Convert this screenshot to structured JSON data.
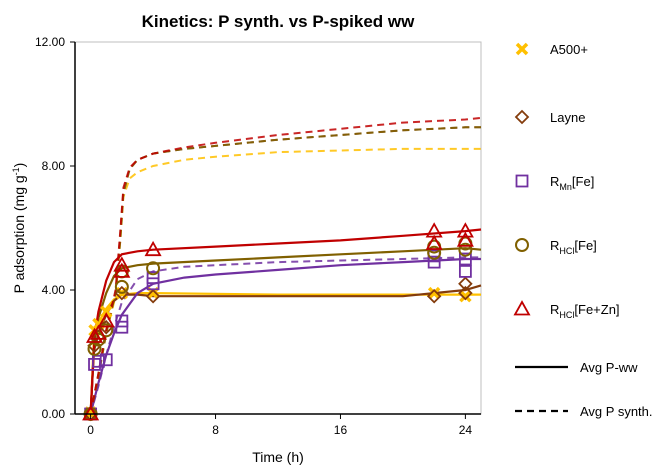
{
  "chart_data": {
    "type": "scatter",
    "title": "Kinetics: P synth. vs P-spiked ww",
    "xlabel": "Time (h)",
    "ylabel_main": "P adsorption (mg g",
    "ylabel_sup": "-1",
    "ylabel_close": ")",
    "xlim": [
      -1,
      25
    ],
    "ylim": [
      0,
      12
    ],
    "x_ticks": [
      "0",
      "8",
      "16",
      "24"
    ],
    "y_ticks": [
      "0.00",
      "4.00",
      "8.00",
      "12.00"
    ],
    "x_tick_values": [
      0,
      8,
      16,
      24
    ],
    "y_tick_values": [
      0,
      4,
      8,
      12
    ],
    "grid": false,
    "legend_position": "right",
    "series": [
      {
        "name": "A500+",
        "label_main": "A500+",
        "label_sub": "",
        "label_tail": "",
        "color": "#FFC000",
        "marker": "x-mark",
        "points": [
          [
            0,
            0
          ],
          [
            0,
            0.05
          ],
          [
            0.25,
            2.7
          ],
          [
            0.5,
            2.9
          ],
          [
            1,
            3.3
          ],
          [
            2,
            3.9
          ],
          [
            4,
            3.9
          ],
          [
            22,
            3.9
          ],
          [
            24,
            3.8
          ]
        ],
        "fit_ww": [
          [
            0,
            0
          ],
          [
            0.2,
            2.3
          ],
          [
            0.5,
            2.95
          ],
          [
            1,
            3.4
          ],
          [
            1.5,
            3.7
          ],
          [
            2,
            3.85
          ],
          [
            3,
            3.9
          ],
          [
            4,
            3.9
          ],
          [
            12,
            3.85
          ],
          [
            24,
            3.85
          ],
          [
            25,
            3.85
          ]
        ],
        "fit_synth": [
          [
            0,
            0
          ],
          [
            0.5,
            1.2
          ],
          [
            1,
            2.6
          ],
          [
            1.6,
            3.8
          ],
          [
            1.9,
            5.6
          ],
          [
            2.1,
            7.0
          ],
          [
            2.5,
            7.6
          ],
          [
            3,
            7.8
          ],
          [
            4,
            8.0
          ],
          [
            6,
            8.2
          ],
          [
            8,
            8.3
          ],
          [
            12,
            8.45
          ],
          [
            16,
            8.5
          ],
          [
            20,
            8.55
          ],
          [
            25,
            8.55
          ]
        ]
      },
      {
        "name": "Layne",
        "label_main": "Layne",
        "label_sub": "",
        "label_tail": "",
        "color": "#843C0C",
        "marker": "diamond",
        "points": [
          [
            0,
            0
          ],
          [
            0.25,
            2.2
          ],
          [
            0.5,
            2.5
          ],
          [
            1,
            2.8
          ],
          [
            2,
            3.9
          ],
          [
            4,
            3.8
          ],
          [
            22,
            3.8
          ],
          [
            24,
            3.9
          ],
          [
            24,
            4.2
          ]
        ],
        "fit_ww": [
          [
            0,
            0
          ],
          [
            0.2,
            2.0
          ],
          [
            0.5,
            2.6
          ],
          [
            1,
            3.2
          ],
          [
            1.5,
            3.65
          ],
          [
            2,
            3.85
          ],
          [
            3,
            3.85
          ],
          [
            4,
            3.8
          ],
          [
            12,
            3.8
          ],
          [
            20,
            3.8
          ],
          [
            24,
            4.0
          ],
          [
            25,
            4.15
          ]
        ],
        "fit_synth": [
          [
            0,
            0
          ],
          [
            0.5,
            1.3
          ],
          [
            1,
            2.7
          ],
          [
            1.6,
            3.9
          ],
          [
            1.9,
            5.8
          ],
          [
            2.1,
            7.2
          ],
          [
            2.5,
            7.9
          ],
          [
            3,
            8.2
          ],
          [
            4,
            8.4
          ],
          [
            6,
            8.55
          ],
          [
            8,
            8.65
          ],
          [
            12,
            8.85
          ],
          [
            16,
            9.0
          ],
          [
            20,
            9.15
          ],
          [
            24,
            9.25
          ],
          [
            25,
            9.25
          ]
        ]
      },
      {
        "name": "RMn[Fe]",
        "label_main": "R",
        "label_sub": "Mn",
        "label_tail": "[Fe]",
        "color": "#7030A0",
        "marker": "square",
        "points": [
          [
            0,
            0
          ],
          [
            0.25,
            1.6
          ],
          [
            0.5,
            1.7
          ],
          [
            1,
            1.75
          ],
          [
            2,
            2.8
          ],
          [
            2,
            3.0
          ],
          [
            4,
            4.2
          ],
          [
            4,
            4.4
          ],
          [
            22,
            4.9
          ],
          [
            22,
            5.1
          ],
          [
            24,
            4.6
          ],
          [
            24,
            5.0
          ]
        ],
        "fit_ww": [
          [
            0,
            0
          ],
          [
            0.5,
            1.0
          ],
          [
            1,
            1.9
          ],
          [
            1.5,
            2.6
          ],
          [
            2,
            3.2
          ],
          [
            3,
            3.9
          ],
          [
            4,
            4.2
          ],
          [
            6,
            4.4
          ],
          [
            8,
            4.5
          ],
          [
            12,
            4.65
          ],
          [
            16,
            4.8
          ],
          [
            20,
            4.9
          ],
          [
            24,
            5.0
          ],
          [
            25,
            5.0
          ]
        ],
        "fit_synth": [
          [
            0,
            0
          ],
          [
            0.5,
            0.9
          ],
          [
            1,
            1.9
          ],
          [
            1.5,
            2.8
          ],
          [
            2,
            3.6
          ],
          [
            3,
            4.35
          ],
          [
            4,
            4.6
          ],
          [
            6,
            4.75
          ],
          [
            8,
            4.8
          ],
          [
            12,
            4.9
          ],
          [
            16,
            4.95
          ],
          [
            20,
            5.0
          ],
          [
            24,
            5.05
          ],
          [
            25,
            5.05
          ]
        ]
      },
      {
        "name": "RHCl[Fe]",
        "label_main": "R",
        "label_sub": "HCl",
        "label_tail": "[Fe]",
        "color": "#806000",
        "marker": "circle",
        "points": [
          [
            0,
            0
          ],
          [
            0.25,
            2.1
          ],
          [
            0.5,
            2.4
          ],
          [
            1,
            2.7
          ],
          [
            2,
            4.1
          ],
          [
            2,
            4.6
          ],
          [
            4,
            4.7
          ],
          [
            22,
            5.2
          ],
          [
            22,
            5.4
          ],
          [
            24,
            5.3
          ],
          [
            24,
            5.5
          ]
        ],
        "fit_ww": [
          [
            0,
            0
          ],
          [
            0.25,
            2.4
          ],
          [
            0.5,
            3.1
          ],
          [
            1,
            3.9
          ],
          [
            1.5,
            4.45
          ],
          [
            2,
            4.7
          ],
          [
            3,
            4.8
          ],
          [
            4,
            4.85
          ],
          [
            8,
            4.95
          ],
          [
            12,
            5.05
          ],
          [
            16,
            5.15
          ],
          [
            20,
            5.25
          ],
          [
            24,
            5.35
          ],
          [
            25,
            5.3
          ]
        ],
        "fit_synth": [
          [
            0,
            0
          ],
          [
            0.5,
            1.2
          ],
          [
            1,
            2.6
          ],
          [
            1.6,
            3.9
          ],
          [
            1.9,
            5.6
          ],
          [
            2.1,
            7.1
          ],
          [
            2.5,
            7.9
          ],
          [
            3,
            8.2
          ],
          [
            4,
            8.4
          ],
          [
            6,
            8.55
          ],
          [
            8,
            8.65
          ],
          [
            12,
            8.85
          ],
          [
            16,
            9.0
          ],
          [
            20,
            9.15
          ],
          [
            24,
            9.25
          ],
          [
            25,
            9.25
          ]
        ]
      },
      {
        "name": "RHCl[Fe+Zn]",
        "label_main": "R",
        "label_sub": "HCl",
        "label_tail": "[Fe+Zn]",
        "color": "#C00000",
        "marker": "triangle",
        "points": [
          [
            0,
            0
          ],
          [
            0.25,
            2.5
          ],
          [
            0.5,
            2.6
          ],
          [
            1,
            3.0
          ],
          [
            2,
            4.6
          ],
          [
            2,
            4.8
          ],
          [
            4,
            5.3
          ],
          [
            22,
            5.5
          ],
          [
            22,
            5.9
          ],
          [
            24,
            5.6
          ],
          [
            24,
            5.9
          ]
        ],
        "fit_ww": [
          [
            0,
            0
          ],
          [
            0.25,
            2.5
          ],
          [
            0.5,
            3.3
          ],
          [
            1,
            4.3
          ],
          [
            1.5,
            4.9
          ],
          [
            2,
            5.15
          ],
          [
            3,
            5.25
          ],
          [
            4,
            5.3
          ],
          [
            8,
            5.4
          ],
          [
            12,
            5.5
          ],
          [
            16,
            5.6
          ],
          [
            20,
            5.75
          ],
          [
            24,
            5.9
          ],
          [
            25,
            5.95
          ]
        ],
        "fit_synth": [
          [
            0,
            0
          ],
          [
            0.5,
            1.3
          ],
          [
            1,
            2.7
          ],
          [
            1.6,
            4.0
          ],
          [
            1.9,
            5.9
          ],
          [
            2.1,
            7.3
          ],
          [
            2.5,
            7.95
          ],
          [
            3,
            8.2
          ],
          [
            4,
            8.4
          ],
          [
            6,
            8.6
          ],
          [
            8,
            8.75
          ],
          [
            12,
            9.0
          ],
          [
            16,
            9.2
          ],
          [
            20,
            9.4
          ],
          [
            24,
            9.5
          ],
          [
            25,
            9.55
          ]
        ]
      }
    ],
    "line_legend": [
      {
        "label": "Avg P-ww",
        "style": "solid"
      },
      {
        "label": "Avg P synth.",
        "style": "dashed"
      }
    ]
  }
}
